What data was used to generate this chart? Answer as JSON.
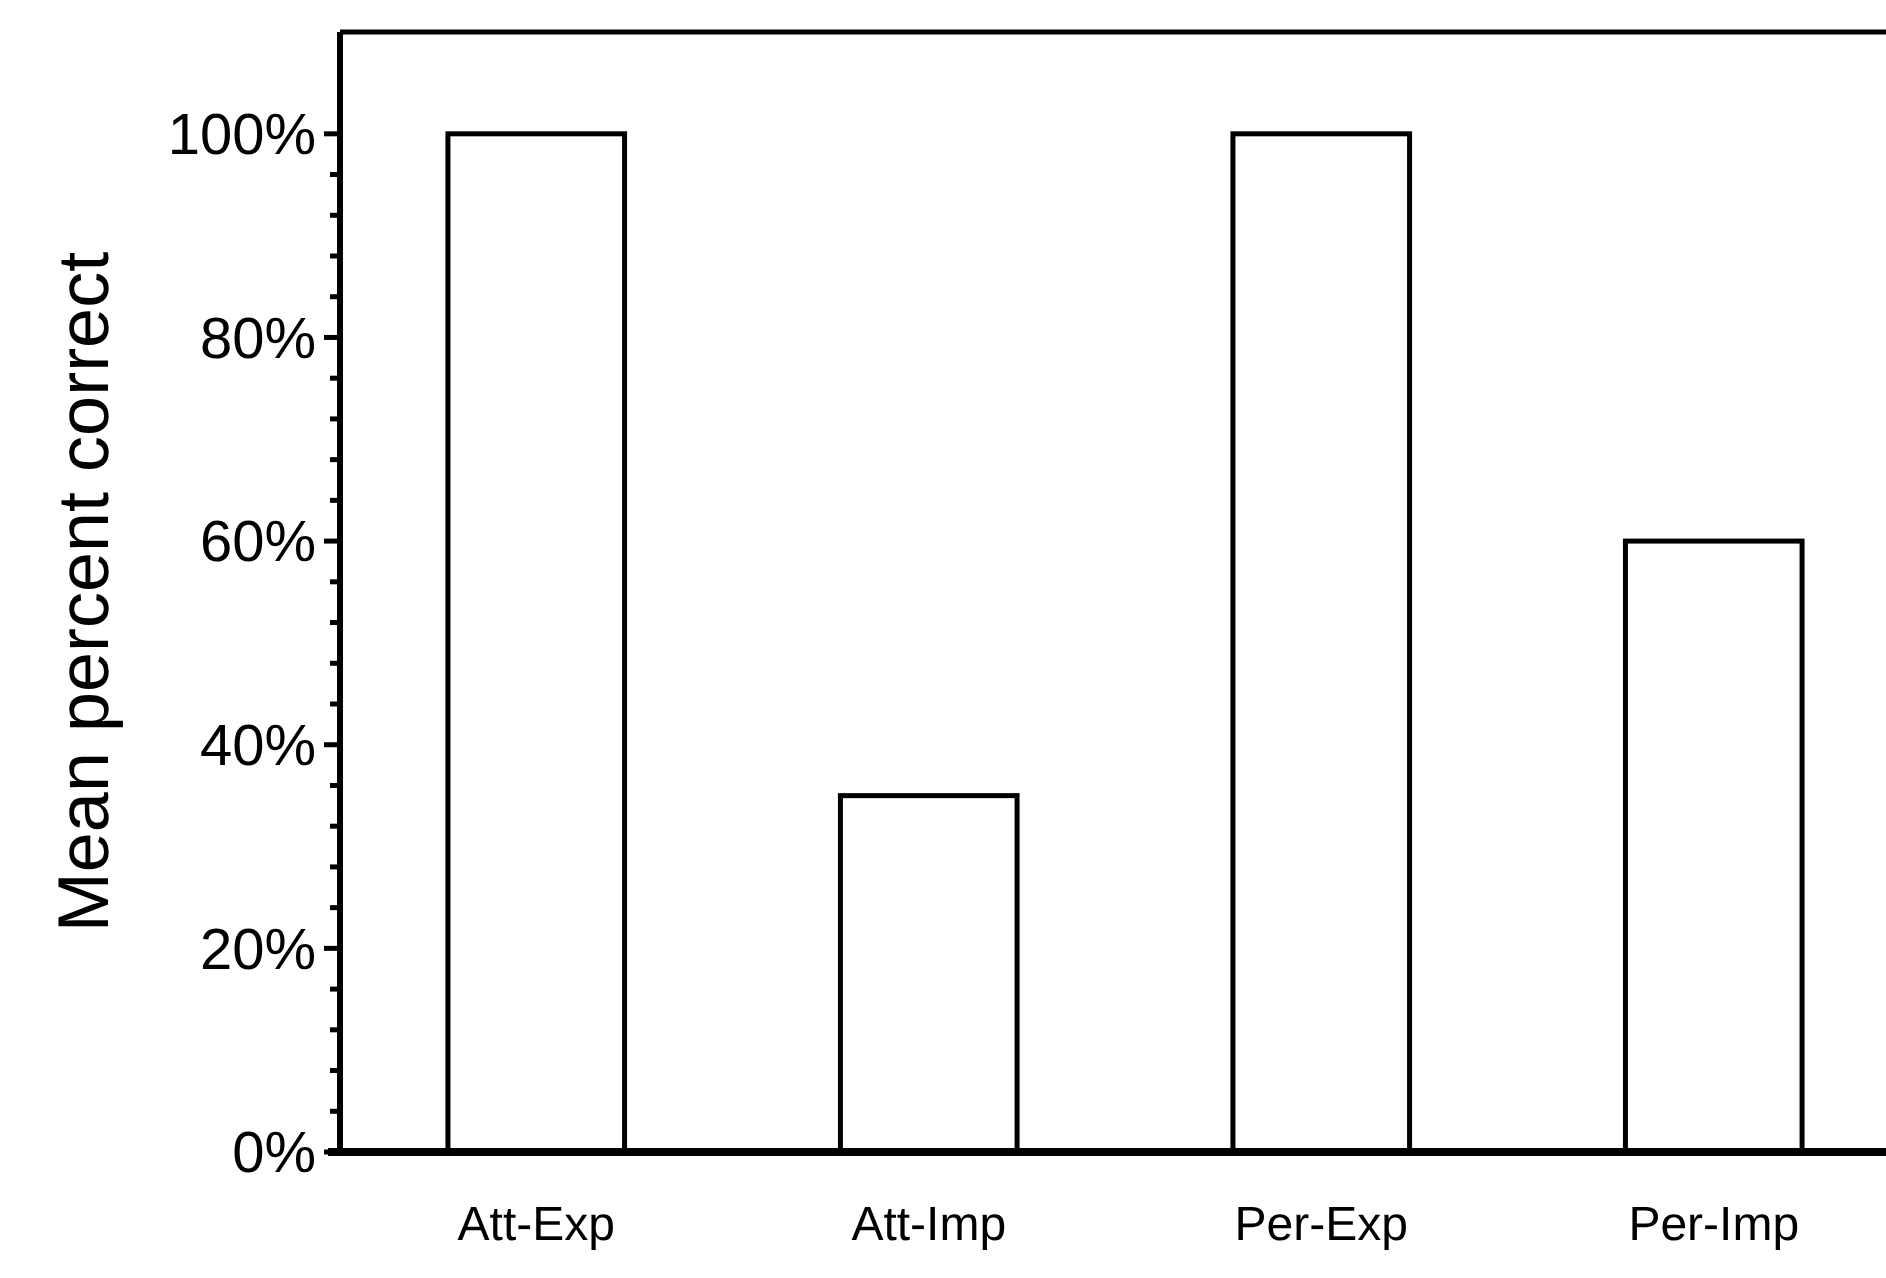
{
  "chart_data": {
    "type": "bar",
    "ylabel": "Mean percent correct",
    "categories": [
      "Att-Exp",
      "Att-Imp",
      "Per-Exp",
      "Per-Imp"
    ],
    "values": [
      100,
      35,
      100,
      60
    ],
    "color": "#ffffff",
    "ylim": [
      0,
      110
    ],
    "yticks": [
      {
        "value": 0,
        "label": "0%"
      },
      {
        "value": 4,
        "label": null
      },
      {
        "value": 8,
        "label": null
      },
      {
        "value": 12,
        "label": null
      },
      {
        "value": 16,
        "label": null
      },
      {
        "value": 20,
        "label": "20%"
      },
      {
        "value": 24,
        "label": null
      },
      {
        "value": 28,
        "label": null
      },
      {
        "value": 32,
        "label": null
      },
      {
        "value": 36,
        "label": null
      },
      {
        "value": 40,
        "label": "40%"
      },
      {
        "value": 44,
        "label": null
      },
      {
        "value": 48,
        "label": null
      },
      {
        "value": 52,
        "label": null
      },
      {
        "value": 56,
        "label": null
      },
      {
        "value": 60,
        "label": "60%"
      },
      {
        "value": 64,
        "label": null
      },
      {
        "value": 68,
        "label": null
      },
      {
        "value": 72,
        "label": null
      },
      {
        "value": 76,
        "label": null
      },
      {
        "value": 80,
        "label": "80%"
      },
      {
        "value": 84,
        "label": null
      },
      {
        "value": 88,
        "label": null
      },
      {
        "value": 92,
        "label": null
      },
      {
        "value": 96,
        "label": null
      },
      {
        "value": 100,
        "label": "100%"
      }
    ],
    "grid": false
  }
}
